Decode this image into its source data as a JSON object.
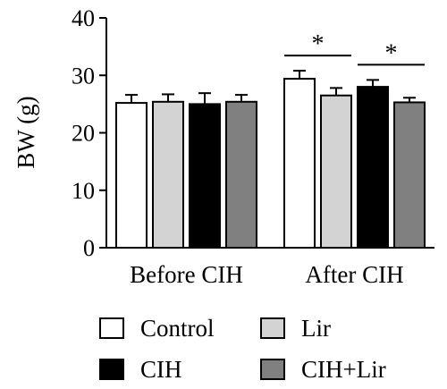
{
  "chart_data": {
    "type": "bar",
    "title": "",
    "xlabel": "",
    "ylabel": "BW (g)",
    "ylim": [
      0,
      40
    ],
    "yticks": [
      0,
      10,
      20,
      30,
      40
    ],
    "categories": [
      "Before CIH",
      "After CIH"
    ],
    "series": [
      {
        "name": "Control",
        "color": "#ffffff",
        "values": [
          25.2,
          29.4
        ],
        "errors": [
          1.4,
          1.4
        ]
      },
      {
        "name": "Lir",
        "color": "#d3d3d3",
        "values": [
          25.4,
          26.5
        ],
        "errors": [
          1.3,
          1.3
        ]
      },
      {
        "name": "CIH",
        "color": "#000000",
        "values": [
          25.0,
          28.0
        ],
        "errors": [
          1.9,
          1.2
        ]
      },
      {
        "name": "CIH+Lir",
        "color": "#808080",
        "values": [
          25.4,
          25.3
        ],
        "errors": [
          1.2,
          0.8
        ]
      }
    ],
    "annotations": [
      {
        "label": "*",
        "category": "After CIH",
        "between": [
          "Control",
          "Lir"
        ]
      },
      {
        "label": "*",
        "category": "After CIH",
        "between": [
          "CIH",
          "CIH+Lir"
        ]
      }
    ],
    "legend_position": "bottom",
    "grid": false
  }
}
